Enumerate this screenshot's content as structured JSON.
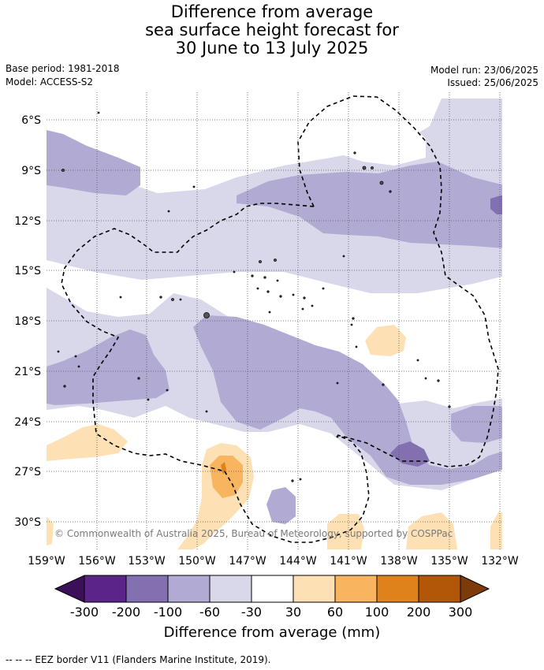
{
  "title": {
    "line1": "Difference from average",
    "line2": "sea surface height forecast for",
    "line3": "30 June to 13 July 2025"
  },
  "meta": {
    "base_period": "Base period: 1981-2018",
    "model": "Model: ACCESS-S2",
    "model_run": "Model run: 23/06/2025",
    "issued": "Issued: 25/06/2025"
  },
  "map": {
    "lat_ticks": [
      "6°S",
      "9°S",
      "12°S",
      "15°S",
      "18°S",
      "21°S",
      "24°S",
      "27°S",
      "30°S"
    ],
    "lon_ticks": [
      "159°W",
      "156°W",
      "153°W",
      "150°W",
      "147°W",
      "144°W",
      "141°W",
      "138°W",
      "135°W",
      "132°W"
    ],
    "copyright": "© Commonwealth of Australia 2025, Bureau of Meteorology, supported by COSPPac"
  },
  "colorbar": {
    "labels": [
      "-300",
      "-200",
      "-100",
      "-60",
      "-30",
      "30",
      "60",
      "100",
      "200",
      "300"
    ],
    "colors": [
      "#3b0f5a",
      "#5a2587",
      "#8270b0",
      "#b1aad3",
      "#d8d8ea",
      "#ffffff",
      "#fde0b4",
      "#f8b45e",
      "#e0821c",
      "#b25708",
      "#7c3b08"
    ],
    "title": "Difference from average (mm)"
  },
  "footnote": "--  --  -- EEZ border V11 (Flanders Marine Institute, 2019)."
}
